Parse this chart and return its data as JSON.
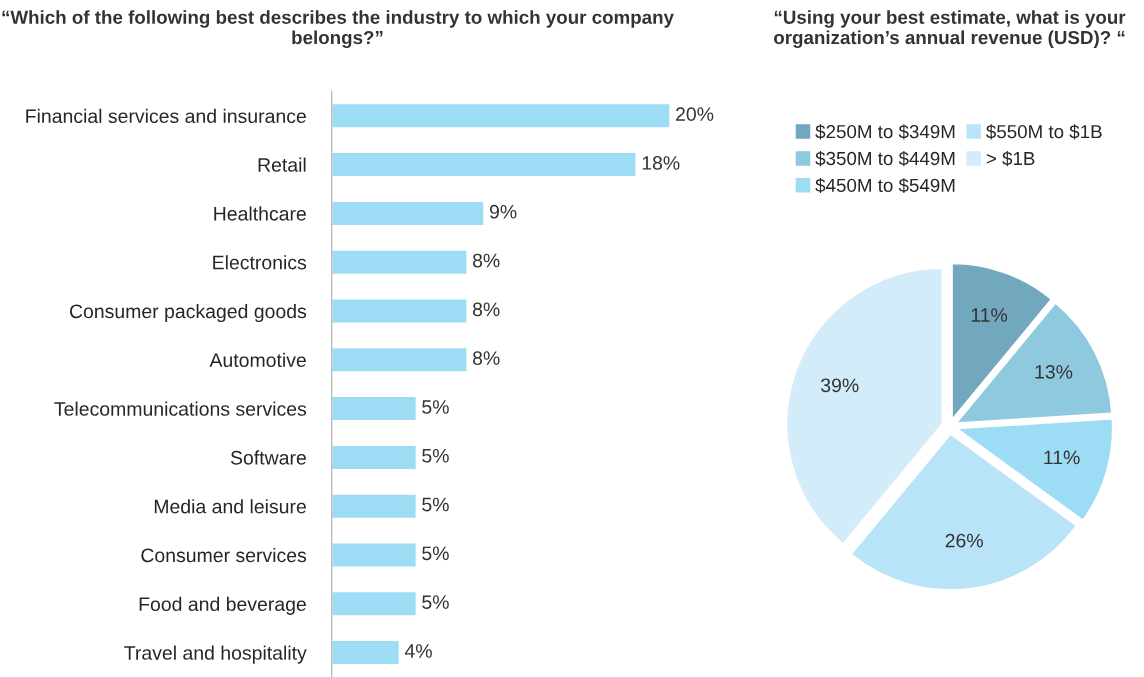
{
  "chart_data": [
    {
      "type": "bar",
      "orientation": "horizontal",
      "title": "“Which of the following best describes the industry to which your company belongs?”",
      "categories": [
        "Financial services and insurance",
        "Retail",
        "Healthcare",
        "Electronics",
        "Consumer packaged goods",
        "Automotive",
        "Telecommunications services",
        "Software",
        "Media and leisure",
        "Consumer services",
        "Food and beverage",
        "Travel and hospitality"
      ],
      "values": [
        20,
        18,
        9,
        8,
        8,
        8,
        5,
        5,
        5,
        5,
        5,
        4
      ],
      "value_labels": [
        "20%",
        "18%",
        "9%",
        "8%",
        "8%",
        "8%",
        "5%",
        "5%",
        "5%",
        "5%",
        "5%",
        "4%"
      ],
      "color": "#9ddcf5",
      "tick_labels": "y",
      "grid": false,
      "legend": false
    },
    {
      "type": "pie",
      "title": "“Using your best estimate, what is your organization’s annual revenue (USD)? “",
      "categories": [
        "$250M to $349M",
        "$350M to $449M",
        "$450M to $549M",
        "$550M to $1B",
        "> $1B"
      ],
      "values": [
        11,
        13,
        11,
        26,
        39
      ],
      "value_labels": [
        "11%",
        "13%",
        "11%",
        "26%",
        "39%"
      ],
      "colors": [
        "#72a8bd",
        "#8ec9e0",
        "#9ddcf5",
        "#b9e4f7",
        "#d3ecf9"
      ],
      "legend": "top"
    }
  ]
}
